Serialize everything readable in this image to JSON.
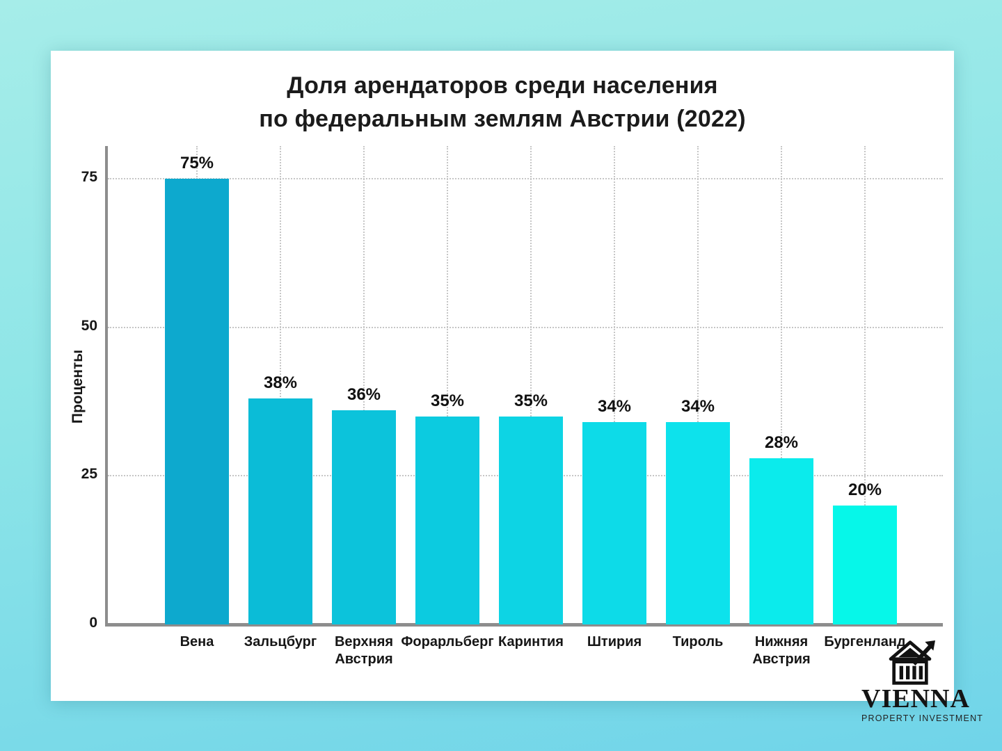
{
  "page": {
    "background_gradient": [
      "#a6ede9",
      "#70d4e9"
    ],
    "card_color": "#ffffff",
    "axis_color": "#8d8d8d",
    "grid_color": "#c6c6c6",
    "text_color": "#1b1b1b"
  },
  "title_lines": {
    "line1": "Доля арендаторов среди населения",
    "line2": "по федеральным землям Австрии (2022)"
  },
  "chart_data": {
    "type": "bar",
    "title": "Доля арендаторов среди населения по федеральным землям Австрии (2022)",
    "categories": [
      "Вена",
      "Зальцбург",
      "Верхняя Австрия",
      "Форарльберг",
      "Каринтия",
      "Штирия",
      "Тироль",
      "Нижняя Австрия",
      "Бургенланд"
    ],
    "values": [
      75,
      38,
      36,
      35,
      35,
      34,
      34,
      28,
      20
    ],
    "value_labels": [
      "75%",
      "38%",
      "36%",
      "35%",
      "35%",
      "34%",
      "34%",
      "28%",
      "20%"
    ],
    "bar_colors": [
      "#0da9ce",
      "#0bbcd7",
      "#0cc3db",
      "#0ccbe0",
      "#0dd4e4",
      "#0ddbe8",
      "#0de2ec",
      "#0bebec",
      "#06f7e9"
    ],
    "xlabel": "",
    "ylabel": "Проценты",
    "yticks": [
      0,
      25,
      50,
      75
    ],
    "ylim": [
      0,
      80
    ],
    "grid": "dotted horizontal lines at yticks and dotted vertical lines at category centers",
    "legend": "none"
  },
  "logo": {
    "icon": "bank-building-with-growth-arrow-icon",
    "brand": "VIENNA",
    "tagline": "PROPERTY INVESTMENT"
  }
}
